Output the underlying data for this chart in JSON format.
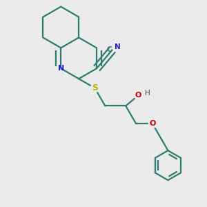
{
  "bg_color": "#ebebeb",
  "bond_color": "#2d7d6e",
  "n_color": "#2020cc",
  "s_color": "#b8b800",
  "o_color": "#cc0000",
  "c_color": "#2d7d6e",
  "h_color": "#404040",
  "line_width": 1.6,
  "figsize": [
    3.0,
    3.0
  ],
  "dpi": 100,
  "xlim": [
    0,
    10
  ],
  "ylim": [
    0,
    10
  ]
}
